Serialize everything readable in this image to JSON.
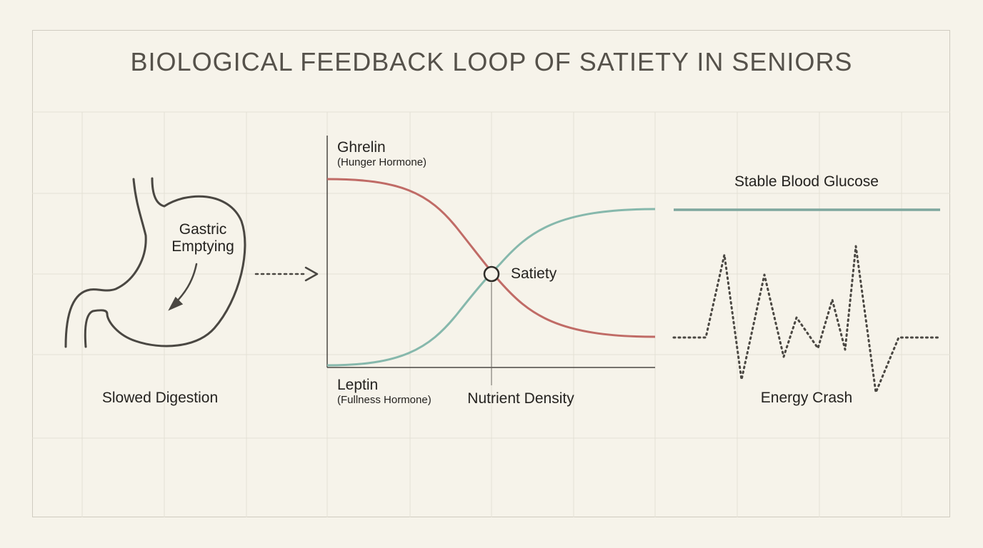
{
  "title": "BIOLOGICAL FEEDBACK LOOP OF SATIETY IN SENIORS",
  "stomach": {
    "inner_label_line1": "Gastric",
    "inner_label_line2": "Emptying",
    "caption": "Slowed Digestion"
  },
  "hormone_chart": {
    "ghrelin_label": "Ghrelin",
    "ghrelin_sub": "(Hunger Hormone)",
    "leptin_label": "Leptin",
    "leptin_sub": "(Fullness Hormone)",
    "x_label": "Nutrient Density",
    "intersection_label": "Satiety"
  },
  "glucose_panel": {
    "stable_label": "Stable Blood Glucose",
    "crash_label": "Energy Crash"
  },
  "colors": {
    "ghrelin": "#c06b66",
    "leptin": "#86b8ac",
    "stable_line": "#7ea79e",
    "ink": "#4a4742",
    "grid": "#e3dfd4"
  },
  "icons": {
    "stomach": "stomach-outline-icon",
    "flow_arrow": "dotted-arrow-icon"
  }
}
